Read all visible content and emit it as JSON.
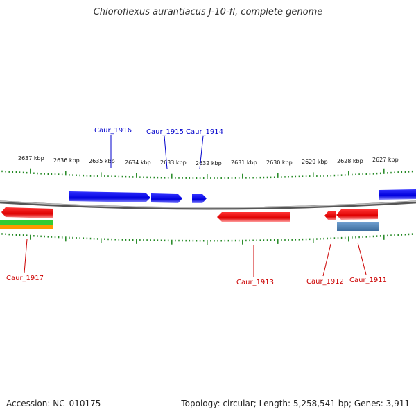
{
  "title": "Chloroflexus aurantiacus J-10-fl, complete genome",
  "footer": {
    "accession": "Accession: NC_010175",
    "summary": "Topology: circular; Length: 5,258,541 bp; Genes: 3,911"
  },
  "colors": {
    "forward_gene": "#0000ee",
    "reverse_gene": "#ee0000",
    "backbone": "#888888",
    "ticks": "#228822",
    "rrna_green": "#33cc33",
    "rrna_orange": "#ff9900",
    "steel_blue": "#4f7fb0"
  },
  "scale_labels": [
    "2637 kbp",
    "2636 kbp",
    "2635 kbp",
    "2634 kbp",
    "2633 kbp",
    "2632 kbp",
    "2631 kbp",
    "2630 kbp",
    "2629 kbp",
    "2628 kbp",
    "2627 kbp"
  ],
  "gene_labels_top": [
    "Caur_1916",
    "Caur_1915",
    "Caur_1914"
  ],
  "gene_labels_bottom": [
    "Caur_1917",
    "Caur_1913",
    "Caur_1912",
    "Caur_1911"
  ]
}
